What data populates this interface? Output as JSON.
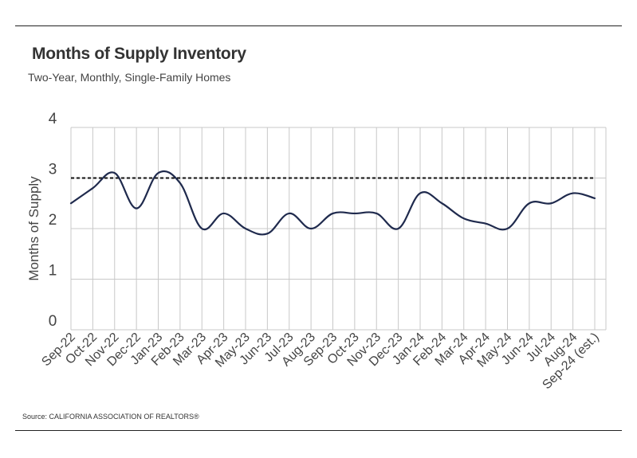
{
  "header": {
    "title": "Months of Supply Inventory",
    "subtitle": "Two-Year, Monthly, Single-Family Homes"
  },
  "footer": {
    "source": "Source:  CALIFORNIA ASSOCIATION OF REALTORS®"
  },
  "colors": {
    "line": "#1f2a4d",
    "grid": "#c8c8c8",
    "reference": "#111111"
  },
  "chart_data": {
    "type": "line",
    "title": "Months of Supply Inventory",
    "subtitle": "Two-Year, Monthly, Single-Family Homes",
    "xlabel": "",
    "ylabel": "Months of Supply",
    "ylim": [
      0,
      4
    ],
    "yticks": [
      "0",
      "1",
      "2",
      "3",
      "4"
    ],
    "grid": true,
    "legend": "none",
    "categories": [
      "Sep-22",
      "Oct-22",
      "Nov-22",
      "Dec-22",
      "Jan-23",
      "Feb-23",
      "Mar-23",
      "Apr-23",
      "May-23",
      "Jun-23",
      "Jul-23",
      "Aug-23",
      "Sep-23",
      "Oct-23",
      "Nov-23",
      "Dec-23",
      "Jan-24",
      "Feb-24",
      "Mar-24",
      "Apr-24",
      "May-24",
      "Jun-24",
      "Jul-24",
      "Aug-24",
      "Sep-24 (est.)"
    ],
    "series": [
      {
        "values": [
          2.5,
          2.8,
          3.1,
          2.4,
          3.1,
          2.9,
          2.0,
          2.3,
          2.0,
          1.9,
          2.3,
          2.0,
          2.3,
          2.3,
          2.3,
          2.0,
          2.7,
          2.5,
          2.2,
          2.1,
          2.0,
          2.5,
          2.5,
          2.7,
          2.6
        ]
      }
    ],
    "reference_line": {
      "value": 3.0,
      "style": "dashed"
    }
  }
}
